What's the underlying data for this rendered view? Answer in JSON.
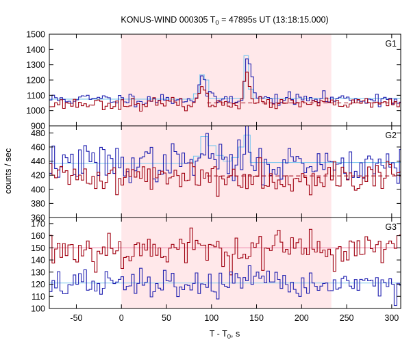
{
  "chart_data": {
    "type": "line",
    "title_parts": {
      "pre": "KONUS-WIND 000305 T",
      "sub": "0",
      "post": " = 47895s UT (13:18:15.000)"
    },
    "xlabel_parts": {
      "pre": "T - T",
      "sub": "0",
      "post": ", s"
    },
    "ylabel": "counts / sec",
    "xlim": [
      -80,
      310
    ],
    "x_ticks": [
      -50,
      0,
      50,
      100,
      150,
      200,
      250,
      300
    ],
    "x_tick_labels": [
      "-50",
      "0",
      "50",
      "100",
      "150",
      "200",
      "250",
      "300"
    ],
    "interval": [
      0,
      233
    ],
    "colors": {
      "blue_series": "#2020b0",
      "red_series": "#a00010",
      "light_blue": "#7ec8ee",
      "interval_fill": "#ffe8ea",
      "bg_dashed": "#a00010",
      "pink_fit": "#f090b0"
    },
    "panels": [
      {
        "label": "G1",
        "ylim": [
          900,
          1500
        ],
        "y_ticks": [
          900,
          1000,
          1100,
          1200,
          1300,
          1400,
          1500
        ],
        "y_tick_labels": [
          "900",
          "1000",
          "1100",
          "1200",
          "1300",
          "1400",
          "1500"
        ],
        "series": [
          {
            "role": "blue",
            "base": 1075,
            "noise": 20,
            "seed": 11,
            "peaks": [
              {
                "t": 90,
                "h": 160,
                "w": 3
              },
              {
                "t": 140,
                "h": 270,
                "w": 3
              },
              {
                "t": 146,
                "h": 60,
                "w": 3
              }
            ]
          },
          {
            "role": "red",
            "base": 1045,
            "noise": 18,
            "seed": 23,
            "peaks": [
              {
                "t": 90,
                "h": 120,
                "w": 3
              },
              {
                "t": 139,
                "h": 230,
                "w": 3
              }
            ]
          }
        ],
        "light_blue_segments": [
          {
            "x0": -80,
            "x1": 80,
            "y": 1075
          },
          {
            "x0": 80,
            "x1": 87,
            "y": 1110
          },
          {
            "x0": 87,
            "x1": 92,
            "y": 1235
          },
          {
            "x0": 92,
            "x1": 97,
            "y": 1200
          },
          {
            "x0": 97,
            "x1": 136,
            "y": 1080
          },
          {
            "x0": 136,
            "x1": 141,
            "y": 1360
          },
          {
            "x0": 141,
            "x1": 146,
            "y": 1140
          },
          {
            "x0": 146,
            "x1": 310,
            "y": 1080
          }
        ],
        "bg_dashed": {
          "x0": 95,
          "x1": 310,
          "y": 1050
        }
      },
      {
        "label": "G2",
        "ylim": [
          360,
          490
        ],
        "y_ticks": [
          360,
          380,
          400,
          420,
          440,
          460,
          480
        ],
        "y_tick_labels": [
          "360",
          "380",
          "400",
          "420",
          "440",
          "460",
          "480"
        ],
        "series": [
          {
            "role": "blue",
            "base": 437,
            "noise": 13,
            "seed": 37,
            "peaks": [
              {
                "t": 95,
                "h": 25,
                "w": 4
              },
              {
                "t": 140,
                "h": 25,
                "w": 4
              }
            ]
          },
          {
            "role": "red",
            "base": 418,
            "noise": 11,
            "seed": 41,
            "peaks": []
          }
        ],
        "light_blue_segments": [
          {
            "x0": -80,
            "x1": 80,
            "y": 437
          },
          {
            "x0": 80,
            "x1": 88,
            "y": 447
          },
          {
            "x0": 88,
            "x1": 96,
            "y": 475
          },
          {
            "x0": 96,
            "x1": 105,
            "y": 462
          },
          {
            "x0": 105,
            "x1": 113,
            "y": 448
          },
          {
            "x0": 113,
            "x1": 122,
            "y": 440
          },
          {
            "x0": 122,
            "x1": 130,
            "y": 445
          },
          {
            "x0": 130,
            "x1": 136,
            "y": 460
          },
          {
            "x0": 136,
            "x1": 143,
            "y": 477
          },
          {
            "x0": 143,
            "x1": 310,
            "y": 438
          }
        ],
        "bg_dashed": {
          "x0": 95,
          "x1": 310,
          "y": 419
        }
      },
      {
        "label": "G3",
        "ylim": [
          100,
          175
        ],
        "y_ticks": [
          100,
          110,
          120,
          130,
          140,
          150,
          160,
          170
        ],
        "y_tick_labels": [
          "100",
          "110",
          "120",
          "130",
          "140",
          "150",
          "160",
          "170"
        ],
        "series": [
          {
            "role": "red",
            "base": 149,
            "noise": 8,
            "seed": 53,
            "peaks": []
          },
          {
            "role": "blue",
            "base": 120,
            "noise": 6,
            "seed": 67,
            "peaks": []
          }
        ],
        "fit_lines": [
          {
            "color_key": "pink_fit",
            "y": 150
          },
          {
            "color_key": "light_blue",
            "y": 121
          }
        ]
      }
    ],
    "bin_width": 2.944
  }
}
